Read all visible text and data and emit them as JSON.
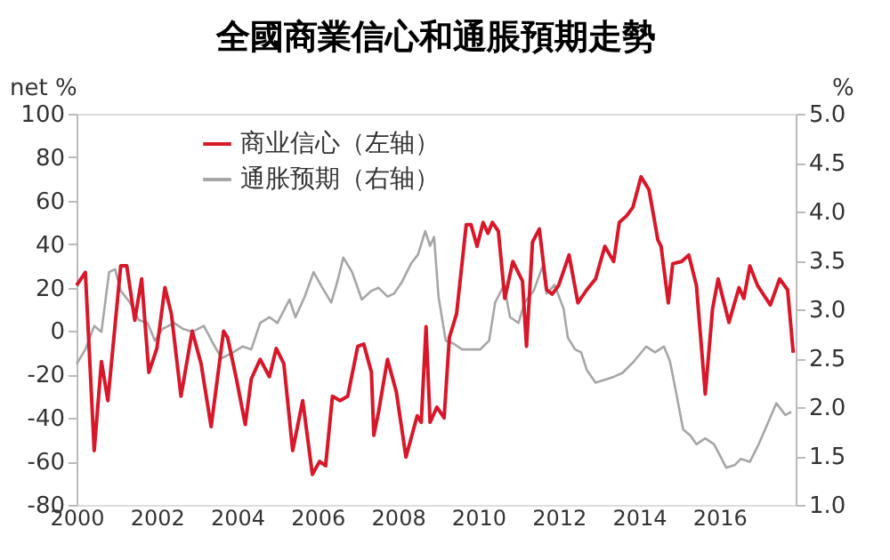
{
  "chart_data": {
    "type": "line",
    "title": "全國商業信心和通脹預期走勢",
    "ylabel": "net %",
    "y2label": "%",
    "xlim": [
      2000,
      2017.9
    ],
    "xticks": [
      2000,
      2002,
      2004,
      2006,
      2008,
      2010,
      2012,
      2014,
      2016
    ],
    "ylim": [
      -80,
      100
    ],
    "yticks": [
      -80,
      -60,
      -40,
      -20,
      0,
      20,
      40,
      60,
      80,
      100
    ],
    "y2lim": [
      1,
      5
    ],
    "y2ticks": [
      {
        "value": 1,
        "label": "1.0"
      },
      {
        "value": 1.5,
        "label": "1.5"
      },
      {
        "value": 2,
        "label": "2.0"
      },
      {
        "value": 2.5,
        "label": "2.5"
      },
      {
        "value": 3,
        "label": "3.0"
      },
      {
        "value": 3.5,
        "label": "3.5"
      },
      {
        "value": 4,
        "label": "4.0"
      },
      {
        "value": 4.5,
        "label": "4.5"
      },
      {
        "value": 5,
        "label": "5.0"
      }
    ],
    "grid": false,
    "legend": "top left",
    "marker": "none",
    "line_style": "solid",
    "series": [
      {
        "name": "商业信心（左轴）",
        "color": "#d7182a",
        "axis": "y",
        "x": [
          2000,
          2000.22,
          2000.44,
          2000.62,
          2000.78,
          2001.1,
          2001.25,
          2001.45,
          2001.62,
          2001.8,
          2002.0,
          2002.2,
          2002.36,
          2002.6,
          2002.88,
          2003.1,
          2003.35,
          2003.66,
          2003.76,
          2003.98,
          2004.2,
          2004.35,
          2004.57,
          2004.8,
          2004.97,
          2005.16,
          2005.38,
          2005.63,
          2005.87,
          2006.05,
          2006.2,
          2006.37,
          2006.56,
          2006.75,
          2007.0,
          2007.15,
          2007.34,
          2007.4,
          2007.52,
          2007.74,
          2007.96,
          2008.2,
          2008.48,
          2008.58,
          2008.7,
          2008.8,
          2008.97,
          2009.15,
          2009.28,
          2009.46,
          2009.7,
          2009.82,
          2009.97,
          2010.12,
          2010.24,
          2010.35,
          2010.5,
          2010.66,
          2010.86,
          2011.1,
          2011.2,
          2011.35,
          2011.52,
          2011.7,
          2011.84,
          2012.0,
          2012.26,
          2012.48,
          2012.7,
          2012.92,
          2013.15,
          2013.37,
          2013.51,
          2013.69,
          2013.85,
          2014.05,
          2014.25,
          2014.47,
          2014.55,
          2014.73,
          2014.84,
          2015.06,
          2015.24,
          2015.43,
          2015.65,
          2015.83,
          2015.97,
          2016.24,
          2016.49,
          2016.61,
          2016.76,
          2016.95,
          2017.27,
          2017.5,
          2017.7,
          2017.84
        ],
        "values": [
          21,
          27,
          -55,
          -14,
          -32,
          30,
          30,
          5,
          24,
          -19,
          -8,
          20,
          8,
          -30,
          0,
          -15,
          -44,
          0,
          -3,
          -22,
          -43,
          -22,
          -13,
          -21,
          -8,
          -15,
          -55,
          -32,
          -66,
          -60,
          -62,
          -30,
          -32,
          -30,
          -7,
          -6,
          -19,
          -48,
          -37,
          -13,
          -28,
          -58,
          -39,
          -42,
          2,
          -42,
          -35,
          -40,
          -3,
          8,
          49,
          49,
          39,
          50,
          45,
          50,
          46,
          15,
          32,
          23,
          -7,
          41,
          47,
          19,
          17,
          21,
          35,
          13,
          19,
          24,
          39,
          32,
          50,
          53,
          57,
          71,
          65,
          42,
          39,
          13,
          31,
          32,
          35,
          21,
          -29,
          10,
          24,
          4,
          20,
          15,
          30,
          21,
          12,
          24,
          19,
          -10
        ]
      },
      {
        "name": "通胀预期（右轴）",
        "color": "#a6a6a6",
        "axis": "y2",
        "x": [
          2000,
          2000.22,
          2000.44,
          2000.62,
          2000.81,
          2000.96,
          2001.1,
          2001.33,
          2001.55,
          2001.77,
          2001.95,
          2002.14,
          2002.43,
          2002.65,
          2002.88,
          2003.17,
          2003.4,
          2003.61,
          2003.9,
          2004.13,
          2004.35,
          2004.57,
          2004.8,
          2005.0,
          2005.3,
          2005.45,
          2005.68,
          2005.9,
          2006.12,
          2006.34,
          2006.49,
          2006.64,
          2006.86,
          2007.1,
          2007.34,
          2007.52,
          2007.74,
          2007.9,
          2008.1,
          2008.33,
          2008.5,
          2008.68,
          2008.8,
          2008.9,
          2009.01,
          2009.19,
          2009.38,
          2009.6,
          2009.82,
          2010.05,
          2010.27,
          2010.42,
          2010.64,
          2010.79,
          2011.0,
          2011.15,
          2011.38,
          2011.6,
          2011.7,
          2011.9,
          2012.12,
          2012.23,
          2012.41,
          2012.56,
          2012.7,
          2012.92,
          2013.15,
          2013.37,
          2013.59,
          2013.88,
          2014.18,
          2014.4,
          2014.62,
          2014.77,
          2014.92,
          2015.1,
          2015.28,
          2015.43,
          2015.65,
          2015.87,
          2016.06,
          2016.17,
          2016.39,
          2016.53,
          2016.76,
          2016.98,
          2017.2,
          2017.42,
          2017.64,
          2017.79
        ],
        "values": [
          2.44,
          2.59,
          2.83,
          2.77,
          3.38,
          3.41,
          3.19,
          3.07,
          2.89,
          2.86,
          2.68,
          2.8,
          2.86,
          2.8,
          2.77,
          2.83,
          2.65,
          2.5,
          2.56,
          2.62,
          2.59,
          2.86,
          2.92,
          2.86,
          3.1,
          2.92,
          3.13,
          3.38,
          3.22,
          3.07,
          3.28,
          3.53,
          3.38,
          3.1,
          3.19,
          3.22,
          3.13,
          3.16,
          3.28,
          3.47,
          3.56,
          3.8,
          3.65,
          3.74,
          3.13,
          2.68,
          2.65,
          2.59,
          2.59,
          2.59,
          2.68,
          3.07,
          3.25,
          2.92,
          2.86,
          3.07,
          3.19,
          3.44,
          3.16,
          3.25,
          3.01,
          2.71,
          2.59,
          2.56,
          2.38,
          2.25,
          2.28,
          2.31,
          2.35,
          2.47,
          2.62,
          2.56,
          2.62,
          2.47,
          2.16,
          1.77,
          1.71,
          1.62,
          1.68,
          1.62,
          1.47,
          1.38,
          1.41,
          1.47,
          1.44,
          1.62,
          1.83,
          2.04,
          1.92,
          1.95
        ]
      }
    ]
  }
}
